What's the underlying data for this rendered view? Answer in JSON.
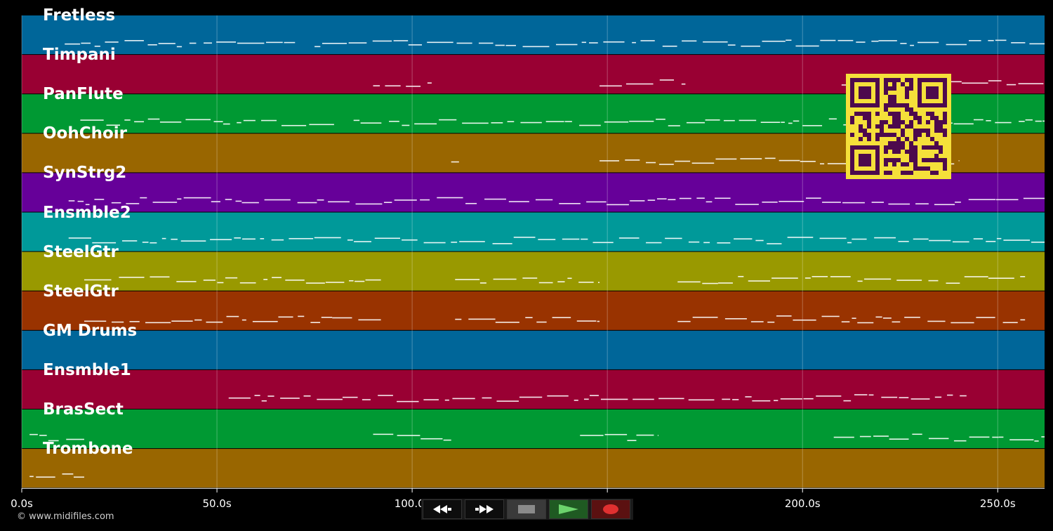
{
  "tracks": [
    {
      "name": "Fretless",
      "color": "#006699"
    },
    {
      "name": "Timpani",
      "color": "#990033"
    },
    {
      "name": "PanFlute",
      "color": "#009933"
    },
    {
      "name": "OohChoir",
      "color": "#996600"
    },
    {
      "name": "SynStrg2",
      "color": "#660099"
    },
    {
      "name": "Ensmble2",
      "color": "#009999"
    },
    {
      "name": "SteelGtr",
      "color": "#999900"
    },
    {
      "name": "SteelGtr",
      "color": "#993300"
    },
    {
      "name": "GM Drums",
      "color": "#006699"
    },
    {
      "name": "Ensmble1",
      "color": "#990033"
    },
    {
      "name": "BrasSect",
      "color": "#009933"
    },
    {
      "name": "Trombone",
      "color": "#996600"
    }
  ],
  "time_axis": {
    "ticks": [
      "0.0s",
      "50.0s",
      "100.0s",
      "150.0s",
      "200.0s",
      "250.0s"
    ],
    "tick_values": [
      0,
      50,
      100,
      150,
      200,
      250
    ],
    "max_seconds": 262
  },
  "footer": {
    "copyright": "© www.midifiles.com"
  },
  "transport": {
    "rewind": "rewind-icon",
    "fast_forward": "fast-forward-icon",
    "stop": "stop-icon",
    "play": "play-icon",
    "record": "record-icon"
  },
  "qr_colors": {
    "foreground": "#4d0a4d",
    "background": "#f5e03a"
  }
}
